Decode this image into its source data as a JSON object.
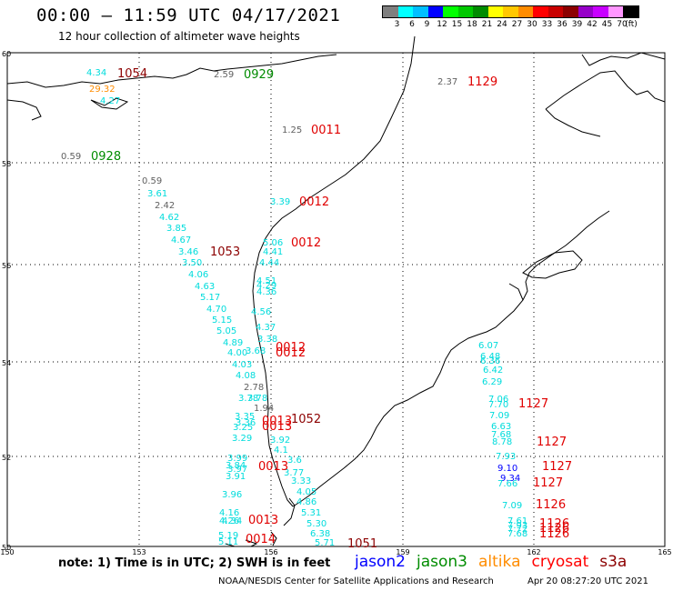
{
  "header": {
    "title": "00:00 – 11:59 UTC 04/17/2021",
    "subtitle": "12 hour collection of altimeter wave heights"
  },
  "colorbar": {
    "colors": [
      "#7f7f7f",
      "#00ffff",
      "#00bfff",
      "#0000ff",
      "#00ff00",
      "#00c800",
      "#008c00",
      "#ffff00",
      "#ffc800",
      "#ff8c00",
      "#ff0000",
      "#c80000",
      "#8c0000",
      "#9600c8",
      "#c800ff",
      "#ff96ff",
      "#000000"
    ],
    "labels": [
      "3",
      "6",
      "9",
      "12",
      "15",
      "18",
      "21",
      "24",
      "27",
      "30",
      "33",
      "36",
      "39",
      "42",
      "45",
      "70",
      "(ft)"
    ]
  },
  "axes": {
    "lat_labels": [
      "60",
      "58",
      "56",
      "54",
      "52",
      "50"
    ],
    "lon_labels": [
      "150",
      "153",
      "156",
      "159",
      "162",
      "165"
    ]
  },
  "series_colors": {
    "jason2": "#0000ff",
    "jason3": "#008c00",
    "altika": "#ff8c00",
    "cryosat": "#ff0000",
    "s3a": "#8c0000",
    "cyan": "#00dcdc",
    "gray": "#606060",
    "darkred": "#8c0000",
    "red": "#e00000",
    "green": "#008c00",
    "orange": "#ff8c00",
    "blue": "#0000ff"
  },
  "wave_labels": [
    {
      "t": "4.34",
      "c": "cyan"
    },
    {
      "t": "29.32",
      "c": "orange"
    },
    {
      "t": "4.27",
      "c": "cyan"
    },
    {
      "t": "2.59",
      "c": "gray"
    },
    {
      "t": "2.37",
      "c": "gray"
    },
    {
      "t": "1.25",
      "c": "gray"
    },
    {
      "t": "0.59",
      "c": "gray"
    },
    {
      "t": "0.59",
      "c": "gray"
    },
    {
      "t": "3.61",
      "c": "cyan"
    },
    {
      "t": "2.42",
      "c": "gray"
    },
    {
      "t": "4.62",
      "c": "cyan"
    },
    {
      "t": "3.85",
      "c": "cyan"
    },
    {
      "t": "4.67",
      "c": "cyan"
    },
    {
      "t": "3.46",
      "c": "cyan"
    },
    {
      "t": "3.50",
      "c": "cyan"
    },
    {
      "t": "4.06",
      "c": "cyan"
    },
    {
      "t": "4.63",
      "c": "cyan"
    },
    {
      "t": "5.17",
      "c": "cyan"
    },
    {
      "t": "4.70",
      "c": "cyan"
    },
    {
      "t": "5.15",
      "c": "cyan"
    },
    {
      "t": "5.05",
      "c": "cyan"
    },
    {
      "t": "4.89",
      "c": "cyan"
    },
    {
      "t": "4.00",
      "c": "cyan"
    },
    {
      "t": "4.03",
      "c": "cyan"
    },
    {
      "t": "4.08",
      "c": "cyan"
    },
    {
      "t": "2.78",
      "c": "gray"
    },
    {
      "t": "3.78",
      "c": "cyan"
    },
    {
      "t": "3.78",
      "c": "cyan"
    },
    {
      "t": "1.94",
      "c": "gray"
    },
    {
      "t": "3.35",
      "c": "cyan"
    },
    {
      "t": "3.36",
      "c": "cyan"
    },
    {
      "t": "3.25",
      "c": "cyan"
    },
    {
      "t": "3.29",
      "c": "cyan"
    },
    {
      "t": "3.39",
      "c": "cyan"
    },
    {
      "t": "5.06",
      "c": "cyan"
    },
    {
      "t": "4.41",
      "c": "cyan"
    },
    {
      "t": "4.44",
      "c": "cyan"
    },
    {
      "t": "4.51",
      "c": "cyan"
    },
    {
      "t": "4.29",
      "c": "cyan"
    },
    {
      "t": "4.36",
      "c": "cyan"
    },
    {
      "t": "4.56",
      "c": "cyan"
    },
    {
      "t": "4.37",
      "c": "cyan"
    },
    {
      "t": "3.38",
      "c": "cyan"
    },
    {
      "t": "3.68",
      "c": "cyan"
    },
    {
      "t": "3.92",
      "c": "cyan"
    },
    {
      "t": "4.1",
      "c": "cyan"
    },
    {
      "t": "3.6",
      "c": "cyan"
    },
    {
      "t": "3.77",
      "c": "cyan"
    },
    {
      "t": "3.33",
      "c": "cyan"
    },
    {
      "t": "4.05",
      "c": "cyan"
    },
    {
      "t": "4.86",
      "c": "cyan"
    },
    {
      "t": "5.31",
      "c": "cyan"
    },
    {
      "t": "5.30",
      "c": "cyan"
    },
    {
      "t": "6.38",
      "c": "cyan"
    },
    {
      "t": "5.71",
      "c": "cyan"
    },
    {
      "t": "3.99",
      "c": "cyan"
    },
    {
      "t": "3.84",
      "c": "cyan"
    },
    {
      "t": "3.97",
      "c": "cyan"
    },
    {
      "t": "3.91",
      "c": "cyan"
    },
    {
      "t": "3.96",
      "c": "cyan"
    },
    {
      "t": "4.16",
      "c": "cyan"
    },
    {
      "t": "4.26",
      "c": "cyan"
    },
    {
      "t": "4.34",
      "c": "cyan"
    },
    {
      "t": "5.19",
      "c": "cyan"
    },
    {
      "t": "5.11",
      "c": "cyan"
    },
    {
      "t": "6.07",
      "c": "cyan"
    },
    {
      "t": "6.48",
      "c": "cyan"
    },
    {
      "t": "6.36",
      "c": "cyan"
    },
    {
      "t": "6.42",
      "c": "cyan"
    },
    {
      "t": "6.29",
      "c": "cyan"
    },
    {
      "t": "7.06",
      "c": "cyan"
    },
    {
      "t": "7.70",
      "c": "cyan"
    },
    {
      "t": "7.09",
      "c": "cyan"
    },
    {
      "t": "6.63",
      "c": "cyan"
    },
    {
      "t": "7.68",
      "c": "cyan"
    },
    {
      "t": "8.78",
      "c": "cyan"
    },
    {
      "t": "7.93",
      "c": "cyan"
    },
    {
      "t": "9.10",
      "c": "blue"
    },
    {
      "t": "9.34",
      "c": "blue"
    },
    {
      "t": "7.66",
      "c": "cyan"
    },
    {
      "t": "7.09",
      "c": "cyan"
    },
    {
      "t": "7.61",
      "c": "cyan"
    },
    {
      "t": "7.93",
      "c": "cyan"
    },
    {
      "t": "7.72",
      "c": "cyan"
    },
    {
      "t": "7.68",
      "c": "cyan"
    }
  ],
  "pass_labels": [
    {
      "t": "1054",
      "c": "darkred"
    },
    {
      "t": "0929",
      "c": "green"
    },
    {
      "t": "0928",
      "c": "green"
    },
    {
      "t": "1129",
      "c": "red"
    },
    {
      "t": "0011",
      "c": "red"
    },
    {
      "t": "0012",
      "c": "red"
    },
    {
      "t": "0012",
      "c": "red"
    },
    {
      "t": "1053",
      "c": "darkred"
    },
    {
      "t": "0012",
      "c": "red"
    },
    {
      "t": "0012",
      "c": "red"
    },
    {
      "t": "1052",
      "c": "darkred"
    },
    {
      "t": "0013",
      "c": "red"
    },
    {
      "t": "0013",
      "c": "red"
    },
    {
      "t": "0013",
      "c": "red"
    },
    {
      "t": "0013",
      "c": "red"
    },
    {
      "t": "0014",
      "c": "red"
    },
    {
      "t": "1051",
      "c": "darkred"
    },
    {
      "t": "1127",
      "c": "red"
    },
    {
      "t": "1127",
      "c": "red"
    },
    {
      "t": "1127",
      "c": "red"
    },
    {
      "t": "1127",
      "c": "red"
    },
    {
      "t": "1126",
      "c": "red"
    },
    {
      "t": "1126",
      "c": "red"
    },
    {
      "t": "1126",
      "c": "red"
    },
    {
      "t": "1126",
      "c": "red"
    }
  ],
  "footer": {
    "note": "note: 1) Time is in UTC; 2) SWH is in feet",
    "sats": [
      {
        "name": "jason2",
        "c": "jason2"
      },
      {
        "name": "jason3",
        "c": "jason3"
      },
      {
        "name": "altika",
        "c": "altika"
      },
      {
        "name": "cryosat",
        "c": "cryosat"
      },
      {
        "name": "s3a",
        "c": "s3a"
      }
    ],
    "credit": "NOAA/NESDIS Center for Satellite Applications and Research",
    "timestamp": "Apr 20 08:27:20 UTC 2021"
  }
}
